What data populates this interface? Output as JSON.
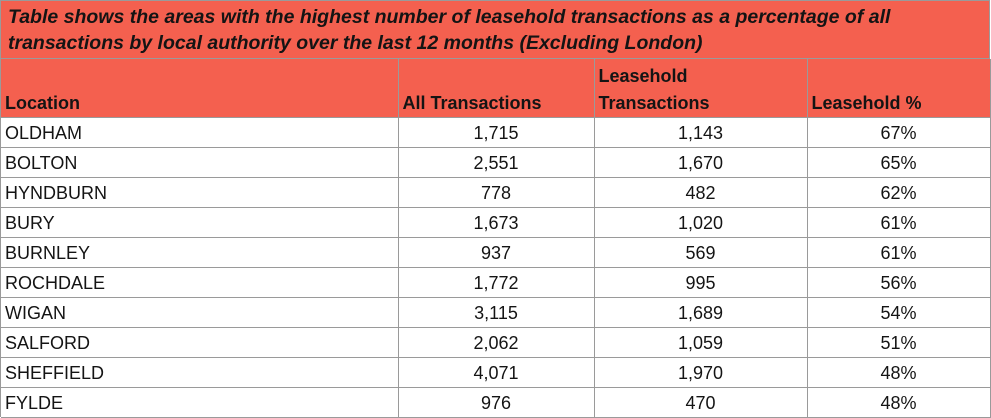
{
  "title": "Table shows the areas with the highest number of leasehold transactions as a percentage of all transactions by local authority over the last 12 months (Excluding London)",
  "columns": {
    "location": "Location",
    "all": "All Transactions",
    "leasehold_line1": "Leasehold",
    "leasehold_line2": "Transactions",
    "percent": "Leasehold %"
  },
  "rows": [
    {
      "location": "OLDHAM",
      "all": "1,715",
      "leasehold": "1,143",
      "percent": "67%"
    },
    {
      "location": "BOLTON",
      "all": "2,551",
      "leasehold": "1,670",
      "percent": "65%"
    },
    {
      "location": "HYNDBURN",
      "all": "778",
      "leasehold": "482",
      "percent": "62%"
    },
    {
      "location": "BURY",
      "all": "1,673",
      "leasehold": "1,020",
      "percent": "61%"
    },
    {
      "location": "BURNLEY",
      "all": "937",
      "leasehold": "569",
      "percent": "61%"
    },
    {
      "location": "ROCHDALE",
      "all": "1,772",
      "leasehold": "995",
      "percent": "56%"
    },
    {
      "location": "WIGAN",
      "all": "3,115",
      "leasehold": "1,689",
      "percent": "54%"
    },
    {
      "location": "SALFORD",
      "all": "2,062",
      "leasehold": "1,059",
      "percent": "51%"
    },
    {
      "location": "SHEFFIELD",
      "all": "4,071",
      "leasehold": "1,970",
      "percent": "48%"
    },
    {
      "location": "FYLDE",
      "all": "976",
      "leasehold": "470",
      "percent": "48%"
    }
  ],
  "colors": {
    "header_bg": "#f4604f",
    "grid": "#9a9a9a"
  }
}
